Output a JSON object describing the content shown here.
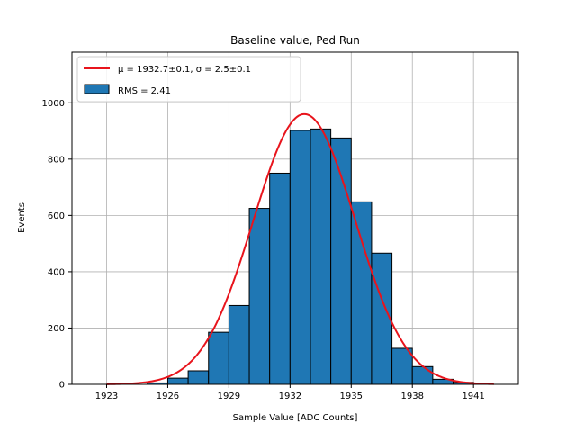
{
  "chart_data": {
    "type": "bar",
    "title": "Baseline value, Ped Run",
    "xlabel": "Sample Value [ADC Counts]",
    "ylabel": "Events",
    "xlim": [
      1921.3,
      1943.2
    ],
    "ylim": [
      0,
      1180
    ],
    "xticks": [
      1923,
      1926,
      1929,
      1932,
      1935,
      1938,
      1941
    ],
    "yticks": [
      0,
      200,
      400,
      600,
      800,
      1000
    ],
    "grid": true,
    "bin_width": 1,
    "bins": [
      {
        "x0": 1925.0,
        "value": 5
      },
      {
        "x0": 1926.0,
        "value": 22
      },
      {
        "x0": 1927.0,
        "value": 48
      },
      {
        "x0": 1928.0,
        "value": 185
      },
      {
        "x0": 1929.0,
        "value": 280
      },
      {
        "x0": 1930.0,
        "value": 625
      },
      {
        "x0": 1931.0,
        "value": 750
      },
      {
        "x0": 1932.0,
        "value": 902
      },
      {
        "x0": 1933.0,
        "value": 907
      },
      {
        "x0": 1934.0,
        "value": 875
      },
      {
        "x0": 1935.0,
        "value": 648
      },
      {
        "x0": 1936.0,
        "value": 466
      },
      {
        "x0": 1937.0,
        "value": 128
      },
      {
        "x0": 1938.0,
        "value": 63
      },
      {
        "x0": 1939.0,
        "value": 18
      },
      {
        "x0": 1940.0,
        "value": 7
      }
    ],
    "fit": {
      "type": "gaussian",
      "mu": 1932.7,
      "sigma": 2.5,
      "amplitude": 960,
      "x_range": [
        1923,
        1942
      ]
    },
    "legend": {
      "placement": "top-left",
      "entries": [
        {
          "label": "μ = 1932.7±0.1, σ = 2.5±0.1",
          "kind": "line",
          "color": "#e8141c"
        },
        {
          "label": "RMS = 2.41",
          "kind": "patch",
          "color": "#1f77b4"
        }
      ]
    },
    "colors": {
      "bar_fill": "#1f77b4",
      "bar_edge": "#000000",
      "fit_line": "#e8141c",
      "grid": "#b0b0b0"
    }
  }
}
